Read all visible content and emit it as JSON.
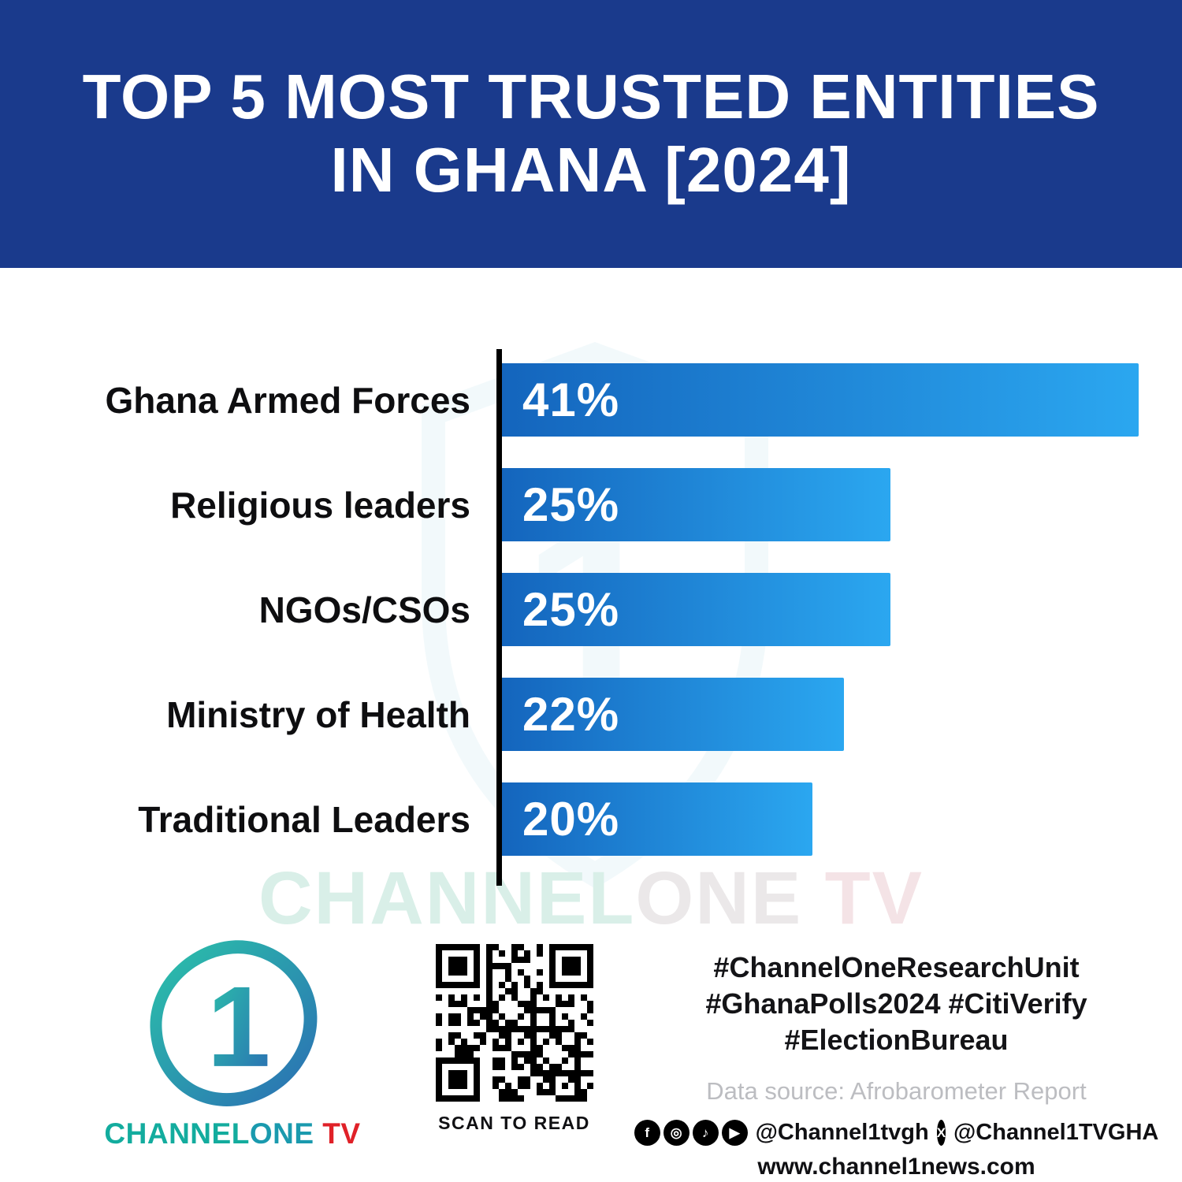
{
  "header": {
    "title_line1": "TOP 5 MOST TRUSTED ENTITIES",
    "title_line2": "IN GHANA [2024]"
  },
  "chart_data": {
    "type": "bar",
    "orientation": "horizontal",
    "title": "TOP 5 MOST TRUSTED ENTITIES IN GHANA [2024]",
    "categories": [
      "Ghana Armed Forces",
      "Religious leaders",
      "NGOs/CSOs",
      "Ministry of Health",
      "Traditional Leaders"
    ],
    "values": [
      41,
      25,
      25,
      22,
      20
    ],
    "value_labels": [
      "41%",
      "25%",
      "25%",
      "22%",
      "20%"
    ],
    "xlim": [
      0,
      41
    ],
    "xlabel": "",
    "ylabel": "",
    "grid": false,
    "legend": false,
    "bar_color_start": "#1465bd",
    "bar_color_end": "#2ba7f0"
  },
  "watermark": {
    "channel": "CHANNEL",
    "one": "ONE",
    "tv": " TV"
  },
  "footer": {
    "logo_number": "1",
    "brand_channel": "CHANNEL",
    "brand_one": "ONE",
    "brand_tv": " TV",
    "qr_caption": "SCAN TO READ",
    "hashtags_line1": "#ChannelOneResearchUnit",
    "hashtags_line2": "#GhanaPolls2024 #CitiVerify",
    "hashtags_line3": "#ElectionBureau",
    "data_source": "Data source: Afrobarometer Report",
    "social_handle_1": "@Channel1tvgh",
    "social_handle_2": "@Channel1TVGHA",
    "website": "www.channel1news.com",
    "icon_glyphs": {
      "facebook": "f",
      "instagram": "◎",
      "tiktok": "♪",
      "youtube": "▶",
      "x": "X"
    }
  },
  "colors": {
    "header_bg": "#1a3a8c",
    "bar_gradient_start": "#1465bd",
    "bar_gradient_end": "#2ba7f0",
    "brand_teal": "#13ac9e",
    "brand_red": "#e02128",
    "axis_black": "#000000",
    "muted_gray": "#bcbdc1"
  }
}
